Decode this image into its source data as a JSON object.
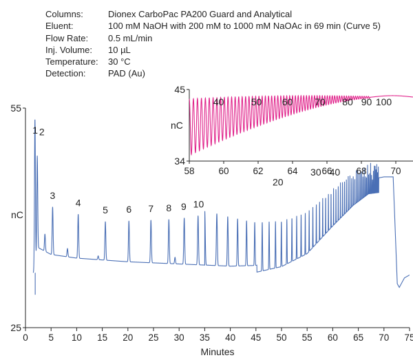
{
  "conditions": [
    {
      "label": "Columns:",
      "value": "Dionex CarboPac PA200 Guard and Analytical"
    },
    {
      "label": "Eluent:",
      "value": "100 mM NaOH with 200 mM to 1000 mM NaOAc in 69 min (Curve 5)"
    },
    {
      "label": "Flow Rate:",
      "value": "0.5 mL/min"
    },
    {
      "label": "Inj. Volume:",
      "value": "10 µL"
    },
    {
      "label": "Temperature:",
      "value": "30 °C"
    },
    {
      "label": "Detection:",
      "value": "PAD (Au)"
    }
  ],
  "chart_data": [
    {
      "type": "line",
      "name": "main",
      "xlabel": "Minutes",
      "ylabel": "nC",
      "xlim": [
        0,
        75
      ],
      "ylim": [
        25,
        55
      ],
      "xticks": [
        0,
        5,
        10,
        15,
        20,
        25,
        30,
        35,
        40,
        45,
        50,
        55,
        60,
        65,
        70,
        75
      ],
      "yticks": [
        25,
        55
      ],
      "color": "#4a6fb5",
      "baseline": [
        [
          0,
          32.5
        ],
        [
          1.9,
          32.5
        ],
        [
          2.3,
          36.0
        ],
        [
          5,
          35.0
        ],
        [
          10,
          34.5
        ],
        [
          20,
          34.0
        ],
        [
          30,
          33.7
        ],
        [
          40,
          33.4
        ],
        [
          45,
          33.5
        ],
        [
          50,
          34.5
        ],
        [
          55,
          36.5
        ],
        [
          60,
          40.5
        ],
        [
          64,
          43.5
        ],
        [
          67,
          45.2
        ],
        [
          70,
          45.6
        ],
        [
          71.8,
          45.6
        ],
        [
          72.6,
          31.0
        ],
        [
          73.0,
          30.5
        ],
        [
          74.0,
          31.8
        ],
        [
          75,
          32.2
        ]
      ],
      "peaks": [
        {
          "x": 1.85,
          "y": 53.5
        },
        {
          "x": 2.3,
          "y": 48.5
        },
        {
          "x": 3.8,
          "y": 37.8
        },
        {
          "x": 5.3,
          "y": 41.5
        },
        {
          "x": 8.2,
          "y": 35.8
        },
        {
          "x": 10.3,
          "y": 40.5
        },
        {
          "x": 14.2,
          "y": 34.8
        },
        {
          "x": 15.6,
          "y": 39.5
        },
        {
          "x": 20.2,
          "y": 39.6
        },
        {
          "x": 24.5,
          "y": 39.7
        },
        {
          "x": 28.0,
          "y": 39.8
        },
        {
          "x": 29.2,
          "y": 34.6
        },
        {
          "x": 31.0,
          "y": 40.0
        },
        {
          "x": 33.7,
          "y": 40.3
        }
      ],
      "dense_region": {
        "x_start": 35,
        "x_end": 69,
        "peak_height_start": 7.5,
        "peak_height_end": 2.0
      },
      "peak_labels": [
        {
          "text": "1",
          "x": 1.9,
          "y": 51.5
        },
        {
          "text": "2",
          "x": 3.2,
          "y": 51.3
        },
        {
          "text": "3",
          "x": 5.3,
          "y": 42.6
        },
        {
          "text": "4",
          "x": 10.3,
          "y": 41.6
        },
        {
          "text": "5",
          "x": 15.6,
          "y": 40.6
        },
        {
          "text": "6",
          "x": 20.2,
          "y": 40.7
        },
        {
          "text": "7",
          "x": 24.5,
          "y": 40.8
        },
        {
          "text": "8",
          "x": 28.0,
          "y": 40.9
        },
        {
          "text": "9",
          "x": 30.9,
          "y": 41.1
        },
        {
          "text": "10",
          "x": 33.8,
          "y": 41.4
        },
        {
          "text": "20",
          "x": 49.3,
          "y": 44.4
        },
        {
          "text": "30",
          "x": 56.7,
          "y": 45.8
        },
        {
          "text": "40",
          "x": 60.4,
          "y": 45.8
        }
      ]
    },
    {
      "type": "line",
      "name": "inset",
      "ylabel": "nC",
      "xlim": [
        58,
        71
      ],
      "ylim": [
        34,
        45
      ],
      "xticks": [
        58,
        60,
        62,
        64,
        66,
        68,
        70
      ],
      "yticks": [
        34,
        45
      ],
      "color": "#e0218a",
      "peak_labels": [
        {
          "text": "40",
          "x": 59.7
        },
        {
          "text": "50",
          "x": 61.9
        },
        {
          "text": "60",
          "x": 63.7
        },
        {
          "text": "70",
          "x": 65.6
        },
        {
          "text": "80",
          "x": 67.2
        },
        {
          "text": "90",
          "x": 68.3
        },
        {
          "text": "100",
          "x": 69.3
        }
      ]
    }
  ]
}
